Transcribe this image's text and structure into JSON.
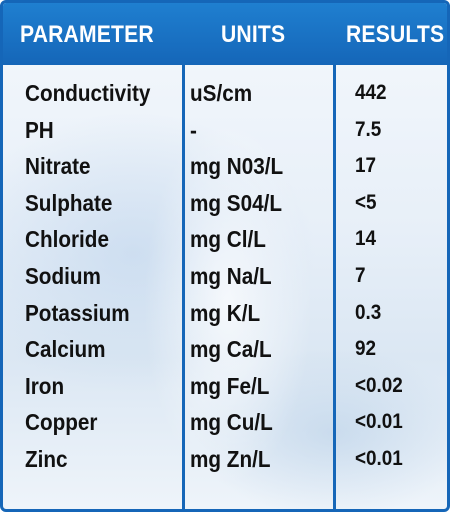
{
  "table": {
    "headers": {
      "parameter": "PARAMETER",
      "units": "UNITS",
      "results": "RESULTS"
    },
    "rows": [
      {
        "parameter": "Conductivity",
        "units": "uS/cm",
        "result": "442"
      },
      {
        "parameter": "PH",
        "units": "-",
        "result": "7.5"
      },
      {
        "parameter": "Nitrate",
        "units": "mg N03/L",
        "result": "17"
      },
      {
        "parameter": "Sulphate",
        "units": "mg S04/L",
        "result": "<5"
      },
      {
        "parameter": "Chloride",
        "units": "mg Cl/L",
        "result": "14"
      },
      {
        "parameter": "Sodium",
        "units": "mg Na/L",
        "result": "7"
      },
      {
        "parameter": "Potassium",
        "units": "mg K/L",
        "result": "0.3"
      },
      {
        "parameter": "Calcium",
        "units": "mg Ca/L",
        "result": "92"
      },
      {
        "parameter": "Iron",
        "units": "mg Fe/L",
        "result": "<0.02"
      },
      {
        "parameter": "Copper",
        "units": "mg Cu/L",
        "result": "<0.01"
      },
      {
        "parameter": "Zinc",
        "units": "mg Zn/L",
        "result": "<0.01"
      }
    ]
  },
  "colors": {
    "header_bg": "#1566b8",
    "border": "#1566b8",
    "header_text": "#ffffff",
    "cell_text": "#111111"
  }
}
